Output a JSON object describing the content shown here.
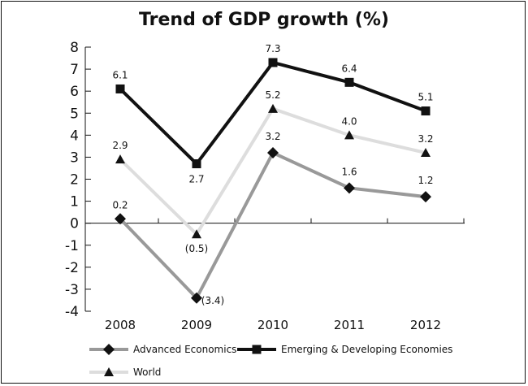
{
  "chart_data": {
    "type": "line",
    "title": "Trend of GDP growth (%)",
    "categories": [
      "2008",
      "2009",
      "2010",
      "2011",
      "2012"
    ],
    "ylim": [
      -4,
      8
    ],
    "yticks": [
      "8",
      "7",
      "6",
      "5",
      "4",
      "3",
      "2",
      "1",
      "0",
      "-1",
      "-2",
      "-3",
      "-4"
    ],
    "grid": false,
    "legend_position": "bottom",
    "series": [
      {
        "name": "Advanced Economics",
        "values": [
          0.2,
          -3.4,
          3.2,
          1.6,
          1.2
        ],
        "labels": [
          "0.2",
          "(3.4)",
          "3.2",
          "1.6",
          "1.2"
        ],
        "color": "#999999",
        "marker": "diamond",
        "marker_color": "#111111"
      },
      {
        "name": "Emerging & Developing Economies",
        "values": [
          6.1,
          2.7,
          7.3,
          6.4,
          5.1
        ],
        "labels": [
          "6.1",
          "2.7",
          "7.3",
          "6.4",
          "5.1"
        ],
        "color": "#111111",
        "marker": "square",
        "marker_color": "#111111"
      },
      {
        "name": "World",
        "values": [
          2.9,
          -0.5,
          5.2,
          4.0,
          3.2
        ],
        "labels": [
          "2.9",
          "(0.5)",
          "5.2",
          "4.0",
          "3.2"
        ],
        "color": "#dddddd",
        "marker": "triangle",
        "marker_color": "#111111"
      }
    ]
  }
}
